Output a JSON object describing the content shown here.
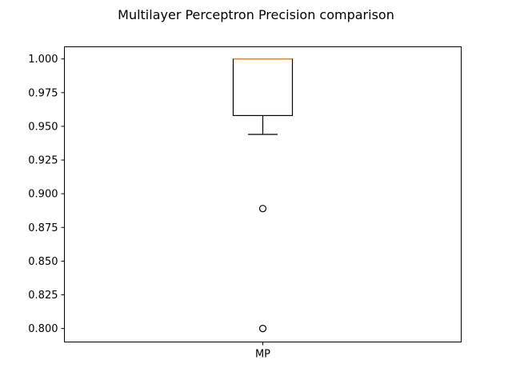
{
  "chart_data": {
    "type": "box",
    "title": "Multilayer Perceptron Precision comparison",
    "xlabel": "",
    "ylabel": "",
    "categories": [
      "MP"
    ],
    "ylim": [
      0.79,
      1.009
    ],
    "yticks": [
      0.8,
      0.825,
      0.85,
      0.875,
      0.9,
      0.925,
      0.95,
      0.975,
      1.0
    ],
    "ytick_labels": [
      "0.800",
      "0.825",
      "0.850",
      "0.875",
      "0.900",
      "0.925",
      "0.950",
      "0.975",
      "1.000"
    ],
    "boxes": [
      {
        "label": "MP",
        "whisker_low": 0.944,
        "q1": 0.958,
        "median": 1.0,
        "q3": 1.0,
        "whisker_high": 1.0,
        "outliers": [
          0.889,
          0.8
        ]
      }
    ],
    "grid": false,
    "colors": {
      "box": "#000000",
      "median": "#ff7f0e",
      "outlier_edge": "#000000"
    }
  }
}
